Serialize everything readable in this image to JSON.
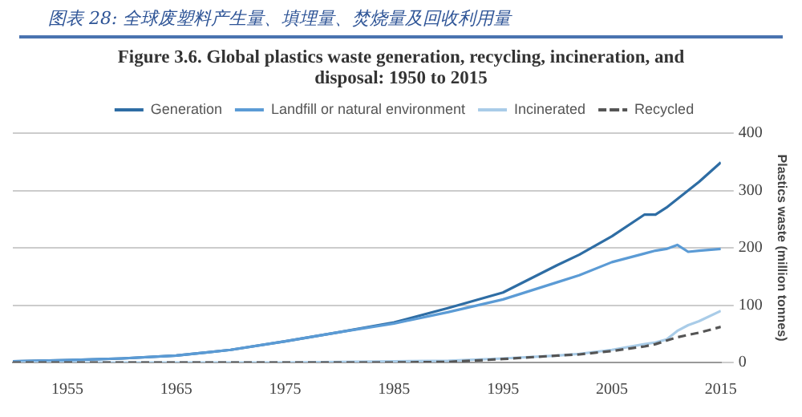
{
  "chart_data": {
    "type": "line",
    "title": "图表 28: 全球废塑料产生量、填埋量、焚烧量及回收利用量",
    "subtitle": "Figure 3.6. Global plastics waste generation, recycling, incineration, and disposal: 1950 to 2015",
    "ylabel": "Plastics waste (million tonnes)",
    "x": [
      1950,
      1955,
      1960,
      1965,
      1970,
      1975,
      1980,
      1985,
      1990,
      1995,
      2000,
      2002,
      2005,
      2008,
      2009,
      2010,
      2011,
      2012,
      2013,
      2015
    ],
    "series": [
      {
        "name": "Generation",
        "color": "#2e6da4",
        "values": [
          2,
          4,
          7,
          12,
          22,
          37,
          53,
          70,
          95,
          122,
          170,
          188,
          220,
          258,
          258,
          270,
          285,
          300,
          315,
          349
        ]
      },
      {
        "name": "Landfill or natural environment",
        "color": "#5b9bd5",
        "values": [
          2,
          4,
          7,
          12,
          22,
          37,
          53,
          68,
          88,
          110,
          140,
          152,
          175,
          190,
          195,
          198,
          205,
          193,
          195,
          198
        ]
      },
      {
        "name": "Incinerated",
        "color": "#a9cce8",
        "values": [
          0,
          0,
          0,
          0,
          0,
          0,
          1,
          2,
          3,
          7,
          12,
          15,
          22,
          32,
          35,
          40,
          55,
          65,
          72,
          90
        ]
      },
      {
        "name": "Recycled",
        "color": "#555555",
        "line_style": "dashed",
        "values": [
          0,
          0,
          0,
          0,
          0,
          0,
          0,
          0,
          1,
          6,
          12,
          14,
          20,
          28,
          32,
          38,
          44,
          48,
          52,
          62
        ]
      }
    ],
    "xlim": [
      1950,
      2015
    ],
    "xticks": [
      1955,
      1965,
      1975,
      1985,
      1995,
      2005,
      2015
    ],
    "ylim": [
      0,
      400
    ],
    "yticks": [
      0,
      100,
      200,
      300,
      400
    ],
    "grid": "y",
    "legend": "top",
    "marker": "none",
    "tick_labels": "xy"
  }
}
